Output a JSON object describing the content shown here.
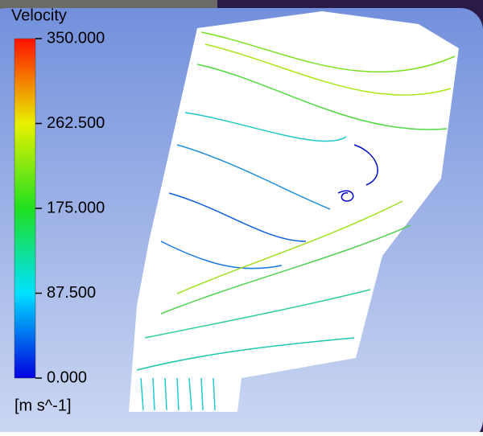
{
  "colorbar": {
    "title": "Velocity",
    "unit": "[m s^-1]",
    "range": [
      0,
      350
    ],
    "ticks": [
      {
        "value": 350,
        "label": "350.000"
      },
      {
        "value": 262.5,
        "label": "262.500"
      },
      {
        "value": 175,
        "label": "175.000"
      },
      {
        "value": 87.5,
        "label": "87.500"
      },
      {
        "value": 0,
        "label": "0.000"
      }
    ]
  }
}
